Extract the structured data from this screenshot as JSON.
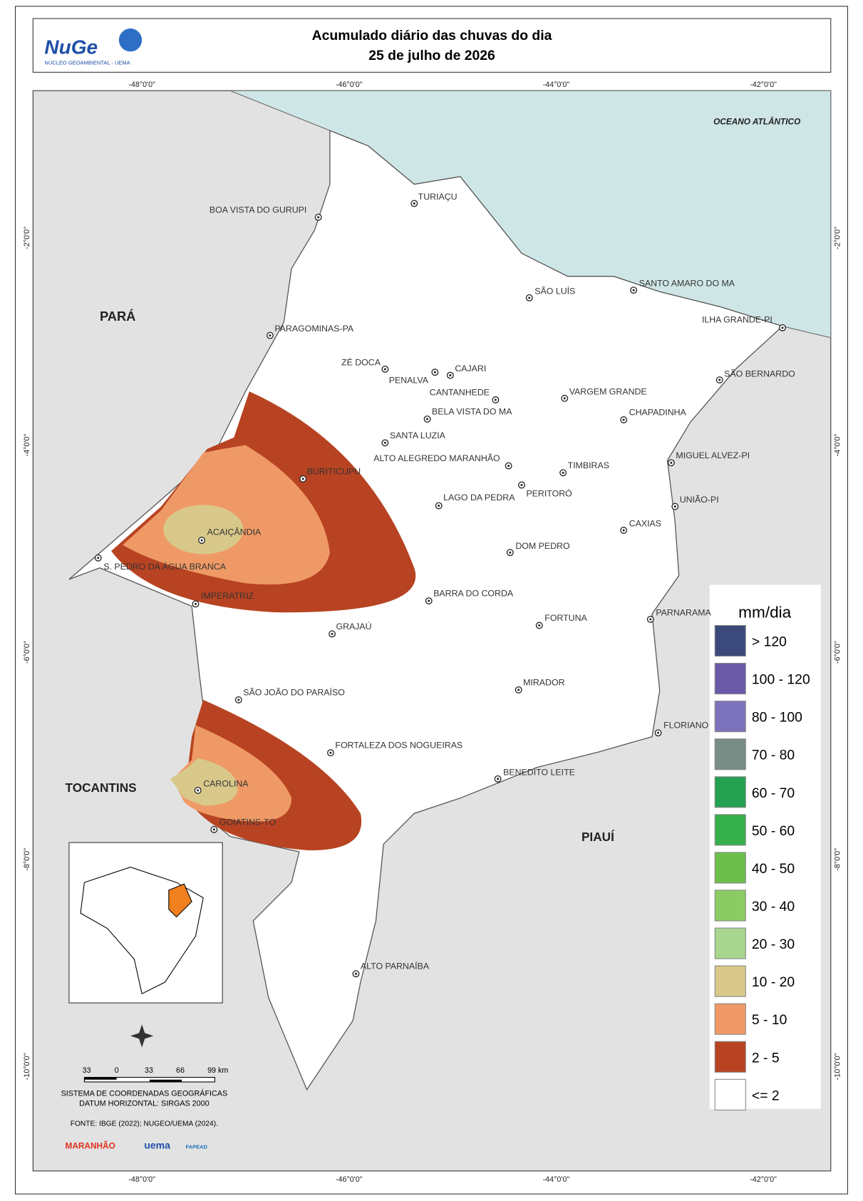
{
  "header": {
    "logo": "NuGe",
    "logo_subtitle": "NÚCLEO GEOAMBIENTAL - UEMA",
    "title": [
      "Acumulado diário das chuvas do dia",
      "25 de julho de 2026"
    ]
  },
  "graticule": {
    "longitudes": [
      "-48°0'0\"",
      "-46°0'0\"",
      "-44°0'0\"",
      "-42°0'0\""
    ],
    "latitudes": [
      "-2°0'0\"",
      "-4°0'0\"",
      "-6°0'0\"",
      "-8°0'0\"",
      "-10°0'0\""
    ]
  },
  "regions": [
    "PARÁ",
    "TOCANTINS",
    "PIAUÍ",
    "OCEANO ATLÂNTICO"
  ],
  "cities": [
    "BOA VISTA DO GURUPI",
    "TURIAÇU",
    "PARAGOMINAS-PA",
    "ZÉ DOCA",
    "PENALVA",
    "CAJARI",
    "SÃO LUÍS",
    "SANTO AMARO DO MA",
    "ILHA GRANDE-PI",
    "SÃO BERNARDO",
    "CANTANHEDE",
    "VARGEM GRANDE",
    "BELA VISTA DO MA",
    "CHAPADINHA",
    "SANTA LUZIA",
    "ALTO ALEGREDO MARANHÃO",
    "TIMBIRAS",
    "MIGUEL ALVEZ-PI",
    "BURITICUPU",
    "PERITORÓ",
    "LAGO DA PEDRA",
    "UNIÃO-PI",
    "CAXIAS",
    "ACAIÇÂNDIA",
    "S. PEDRO DA ÁGUA BRANCA",
    "DOM PEDRO",
    "IMPERATRIZ",
    "BARRA DO CORDA",
    "FORTUNA",
    "PARNARAMA",
    "GRAJAÚ",
    "MIRADOR",
    "SÃO JOÃO DO PARAÍSO",
    "FLORIANO",
    "FORTALEZA DOS NOGUEIRAS",
    "BENEDITO LEITE",
    "CAROLINA",
    "GOIATINS-TO",
    "ALTO PARNAÍBA"
  ],
  "legend": {
    "title": "mm/dia",
    "items": [
      {
        "label": "> 120",
        "color": "#3b4a7a"
      },
      {
        "label": "100 - 120",
        "color": "#6a5aa8"
      },
      {
        "label": "80 - 100",
        "color": "#7d73bd"
      },
      {
        "label": "70 - 80",
        "color": "#7a8c86"
      },
      {
        "label": "60 - 70",
        "color": "#23a150"
      },
      {
        "label": "50 - 60",
        "color": "#35b04a"
      },
      {
        "label": "40 - 50",
        "color": "#6cbf4d"
      },
      {
        "label": "30 - 40",
        "color": "#8ccb63"
      },
      {
        "label": "20 - 30",
        "color": "#a9d68e"
      },
      {
        "label": "10 - 20",
        "color": "#d8c98a"
      },
      {
        "label": "5 - 10",
        "color": "#ef9a66"
      },
      {
        "label": "2 - 5",
        "color": "#b84322"
      },
      {
        "label": "<= 2",
        "color": "#ffffff"
      }
    ]
  },
  "scale_bar": [
    "33",
    "0",
    "33",
    "66",
    "99 km"
  ],
  "footer": {
    "coordinates": [
      "SISTEMA DE COORDENADAS GEOGRÁFICAS",
      "DATUM HORIZONTAL: SIRGAS 2000"
    ],
    "source": "FONTE: IBGE (2022); NUGEO/UEMA (2024).",
    "logos": [
      "MARANHÃO",
      "uema",
      "FAPEAD"
    ]
  }
}
